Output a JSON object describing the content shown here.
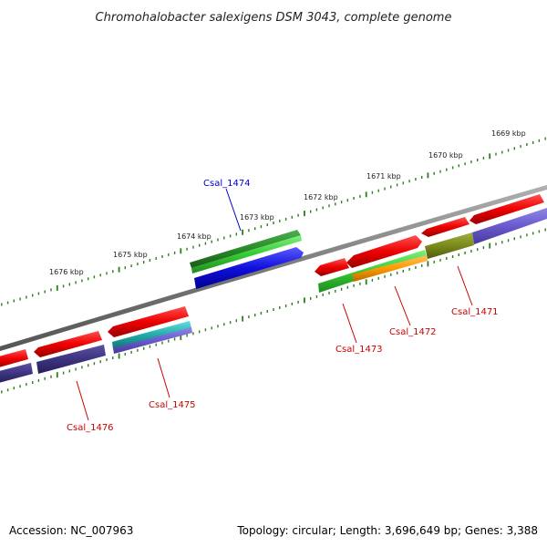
{
  "title": "Chromohalobacter salexigens DSM 3043, complete genome",
  "footer": {
    "accession": "Accession: NC_007963",
    "summary": "Topology: circular; Length: 3,696,649 bp; Genes: 3,388"
  },
  "ticks": [
    "1669 kbp",
    "1670 kbp",
    "1671 kbp",
    "1672 kbp",
    "1673 kbp",
    "1674 kbp",
    "1675 kbp",
    "1676 kbp"
  ],
  "genes": [
    {
      "id": "Csal_1471",
      "color": "#cc0000"
    },
    {
      "id": "Csal_1472",
      "color": "#cc0000"
    },
    {
      "id": "Csal_1473",
      "color": "#cc0000"
    },
    {
      "id": "Csal_1474",
      "color": "#0000cc"
    },
    {
      "id": "Csal_1475",
      "color": "#cc0000"
    },
    {
      "id": "Csal_1476",
      "color": "#cc0000"
    }
  ],
  "colors": {
    "backbone": "#8a8a8a",
    "tick": "#2e7d1e",
    "red": "#e60000",
    "green": "#33cc33",
    "dark_green": "#2a8a2a",
    "blue": "#1010dd",
    "purple": "#6a5acd",
    "dark_purple": "#3c3480",
    "orange": "#ff9900",
    "olive": "#7a8a1a",
    "teal": "#22aaaa"
  }
}
